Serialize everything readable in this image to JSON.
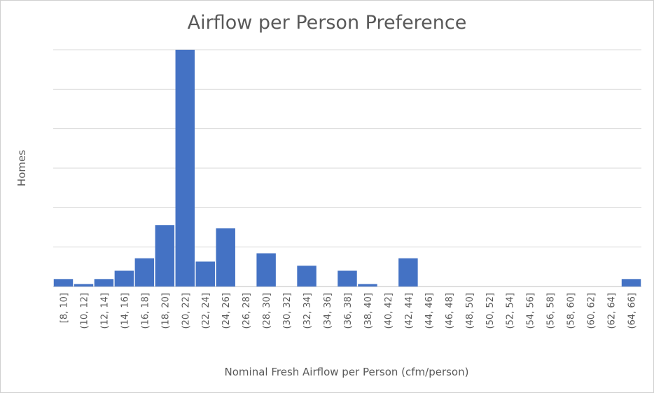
{
  "chart_data": {
    "type": "bar",
    "title": "Airflow per Person Preference",
    "xlabel": "Nominal Fresh Airflow per Person (cfm/person)",
    "ylabel": "Homes",
    "ylim": [
      0,
      5.7
    ],
    "grid": true,
    "color": "#4472c4",
    "categories": [
      "[8, 10]",
      "(10, 12]",
      "(12, 14]",
      "(14, 16]",
      "(16, 18]",
      "(18, 20]",
      "(20, 22]",
      "(22, 24]",
      "(24, 26]",
      "(26, 28]",
      "(28, 30]",
      "(30, 32]",
      "(32, 34]",
      "(34, 36]",
      "(36, 38]",
      "(38, 40]",
      "(40, 42]",
      "(42, 44]",
      "(44, 46]",
      "(46, 48]",
      "(48, 50]",
      "(50, 52]",
      "(52, 54]",
      "(54, 56]",
      "(56, 58]",
      "(58, 60]",
      "(60, 62]",
      "(62, 64]",
      "(64, 66]"
    ],
    "values": [
      0.18,
      0.06,
      0.18,
      0.38,
      0.68,
      1.48,
      5.7,
      0.6,
      1.4,
      0,
      0.8,
      0,
      0.5,
      0,
      0.38,
      0.06,
      0,
      0.68,
      0,
      0,
      0,
      0,
      0,
      0,
      0,
      0,
      0,
      0,
      0.18
    ]
  }
}
